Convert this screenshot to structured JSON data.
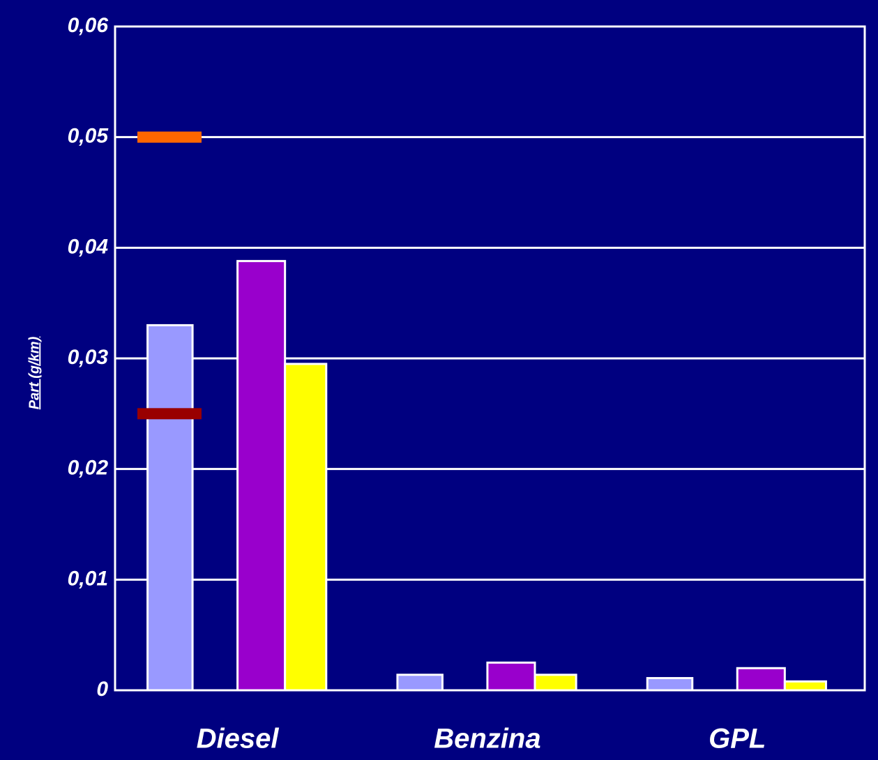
{
  "chart_data": {
    "type": "bar",
    "y_label": "Part (g/km)",
    "categories": [
      "Diesel",
      "Benzina",
      "GPL"
    ],
    "series": [
      {
        "color": "#9999ff",
        "values": [
          0.033,
          0.0014,
          0.0011
        ]
      },
      {
        "color": "#9900cc",
        "values": [
          0.0388,
          0.0025,
          0.002
        ]
      },
      {
        "color": "#ffff00",
        "values": [
          0.0295,
          0.0014,
          0.0008
        ]
      }
    ],
    "markers": [
      {
        "color": "#ff6600",
        "value": 0.05
      },
      {
        "color": "#990000",
        "value": 0.025
      }
    ],
    "ylim": [
      0,
      0.06
    ],
    "yticks": [
      0,
      {
        "value": 0.01,
        "label": "0,01"
      },
      {
        "value": 0.02,
        "label": "0,02"
      },
      {
        "value": 0.03,
        "label": "0,03"
      },
      {
        "value": 0.04,
        "label": "0,04"
      },
      {
        "value": 0.05,
        "label": "0,05"
      },
      {
        "value": 0.06,
        "label": "0,06"
      }
    ],
    "grid": true
  }
}
